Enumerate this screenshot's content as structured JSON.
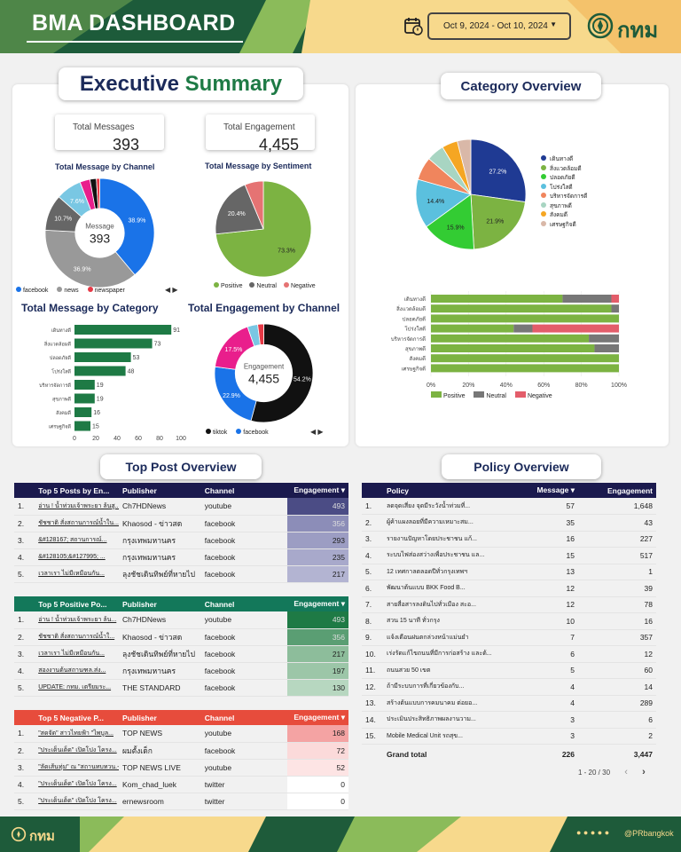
{
  "header": {
    "title": "BMA DASHBOARD",
    "date_range": "Oct 9, 2024 - Oct 10, 2024",
    "logo_text": "กทม"
  },
  "colors": {
    "green": "#1e5b3a",
    "yellow": "#f7d98c",
    "navy": "#1b1a4e",
    "teal": "#13785a",
    "red": "#e74c3c"
  },
  "executive": {
    "title_a": "Executive",
    "title_b": "Summary",
    "total_messages_label": "Total Messages",
    "total_messages": "393",
    "total_engagement_label": "Total Engagement",
    "total_engagement": "4,455"
  },
  "channel_chart": {
    "title": "Total Message by Channel",
    "center_label": "Message",
    "center_value": "393",
    "legend": [
      "facebook",
      "news",
      "newspaper"
    ],
    "chart_data": {
      "type": "pie",
      "slices": [
        {
          "label": "facebook",
          "value": 38.9,
          "color": "#1a73e8"
        },
        {
          "label": "news",
          "value": 36.9,
          "color": "#999999"
        },
        {
          "label": "other-1",
          "value": 10.7,
          "color": "#666666"
        },
        {
          "label": "other-2",
          "value": 7.6,
          "color": "#79c7e3"
        },
        {
          "label": "other-3",
          "value": 3.0,
          "color": "#e91e8c"
        },
        {
          "label": "other-4",
          "value": 1.9,
          "color": "#111111"
        },
        {
          "label": "newspaper",
          "value": 1.0,
          "color": "#e63946"
        }
      ],
      "labels": [
        "38.9%",
        "36.9%",
        "10.7%",
        "7.6%"
      ]
    }
  },
  "sentiment_chart": {
    "title": "Total Message by Sentiment",
    "legend": [
      "Positive",
      "Neutral",
      "Negative"
    ],
    "chart_data": {
      "type": "pie",
      "slices": [
        {
          "label": "Positive",
          "value": 73.3,
          "color": "#7cb342"
        },
        {
          "label": "Neutral",
          "value": 20.4,
          "color": "#666666"
        },
        {
          "label": "Negative",
          "value": 6.3,
          "color": "#e57373"
        }
      ],
      "labels": [
        "73.3%",
        "20.4%"
      ]
    }
  },
  "category_bar": {
    "title": "Total Message by Category",
    "chart_data": {
      "type": "bar",
      "categories": [
        "เดินทางดี",
        "สิ่งแวดล้อมดี",
        "ปลอดภัยดี",
        "โปร่งใสดี",
        "บริหารจัดการดี",
        "สุขภาพดี",
        "สังคมดี",
        "เศรษฐกิจดี"
      ],
      "values": [
        91,
        73,
        53,
        48,
        19,
        19,
        16,
        15
      ],
      "xlim": [
        0,
        100
      ],
      "xticks": [
        "0",
        "20",
        "40",
        "60",
        "80",
        "100"
      ]
    }
  },
  "engagement_channel": {
    "title": "Total Engagement by Channel",
    "center_label": "Engagement",
    "center_value": "4,455",
    "legend": [
      "tiktok",
      "facebook"
    ],
    "chart_data": {
      "type": "pie",
      "slices": [
        {
          "label": "tiktok",
          "value": 54.2,
          "color": "#111111"
        },
        {
          "label": "facebook",
          "value": 22.9,
          "color": "#1a73e8"
        },
        {
          "label": "other-1",
          "value": 17.5,
          "color": "#e91e8c"
        },
        {
          "label": "other-2",
          "value": 3.4,
          "color": "#79c7e3"
        },
        {
          "label": "other-3",
          "value": 2.0,
          "color": "#e63946"
        }
      ],
      "labels": [
        "54.2%",
        "22.9%",
        "17.5%"
      ]
    }
  },
  "category_overview": {
    "title": "Category Overview",
    "pie": {
      "chart_data": {
        "type": "pie",
        "slices": [
          {
            "label": "เดินทางดี",
            "value": 27.2,
            "color": "#1f3a93"
          },
          {
            "label": "สิ่งแวดล้อมดี",
            "value": 21.9,
            "color": "#7cb342"
          },
          {
            "label": "ปลอดภัยดี",
            "value": 15.9,
            "color": "#33cc33"
          },
          {
            "label": "โปร่งใสดี",
            "value": 14.4,
            "color": "#5bc0de"
          },
          {
            "label": "บริหารจัดการดี",
            "value": 6.8,
            "color": "#f0855d"
          },
          {
            "label": "สุขภาพดี",
            "value": 5.2,
            "color": "#a8d5c2"
          },
          {
            "label": "สังคมดี",
            "value": 4.6,
            "color": "#f5a623"
          },
          {
            "label": "เศรษฐกิจดี",
            "value": 4.0,
            "color": "#d9b8a8"
          }
        ],
        "labels": [
          "27.2%",
          "21.9%",
          "15.9%",
          "14.4%"
        ]
      }
    },
    "stacked": {
      "chart_data": {
        "type": "bar",
        "categories": [
          "เดินทางดี",
          "สิ่งแวดล้อมดี",
          "ปลอดภัยดี",
          "โปร่งใสดี",
          "บริหารจัดการดี",
          "สุขภาพดี",
          "สังคมดี",
          "เศรษฐกิจดี"
        ],
        "series": [
          {
            "name": "Positive",
            "color": "#7cb342",
            "values": [
              70,
              96,
              100,
              44,
              84,
              87,
              100,
              100
            ]
          },
          {
            "name": "Neutral",
            "color": "#777777",
            "values": [
              26,
              4,
              0,
              10,
              16,
              13,
              0,
              0
            ]
          },
          {
            "name": "Negative",
            "color": "#e35d6a",
            "values": [
              4,
              0,
              0,
              46,
              0,
              0,
              0,
              0
            ]
          }
        ],
        "xticks": [
          "0%",
          "20%",
          "40%",
          "60%",
          "80%",
          "100%"
        ]
      }
    }
  },
  "top_post": {
    "title": "Top Post Overview",
    "top5": {
      "headers": [
        "Top 5 Posts by En...",
        "Publisher",
        "Channel",
        "Engagement ▾"
      ],
      "rows": [
        [
          "1.",
          "อ่าน ! น้ำท่วมเจ้าพระยา ล้นสู...",
          "Ch7HDNews",
          "youtube",
          "493"
        ],
        [
          "2.",
          "ชัชชาติ สั่งสถานการณ์น้ำใน...",
          "Khaosod - ข่าวสด",
          "facebook",
          "356"
        ],
        [
          "3.",
          "&#128167; สถานการณ์...",
          "กรุงเทพมหานคร",
          "facebook",
          "293"
        ],
        [
          "4.",
          "&#128105;&#127995; ...",
          "กรุงเทพมหานคร",
          "facebook",
          "235"
        ],
        [
          "5.",
          "เวลาเรา ไม่มีเหมือนกัน...",
          "ลุงชัชเดินทิพย์ที่หายไป",
          "facebook",
          "217"
        ]
      ]
    },
    "positive": {
      "headers": [
        "Top 5 Positive Po...",
        "Publisher",
        "Channel",
        "Engagement ▾"
      ],
      "rows": [
        [
          "1.",
          "อ่าน ! น้ำท่วมเจ้าพระยา ล้น...",
          "Ch7HDNews",
          "youtube",
          "493"
        ],
        [
          "2.",
          "ชัชชาติ สั่งสถานการณ์น้ำใ...",
          "Khaosod - ข่าวสด",
          "facebook",
          "356"
        ],
        [
          "3.",
          "เวลาเรา ไม่มีเหมือนกัน...",
          "ลุงชัชเดินทิพย์ที่หายไป",
          "facebook",
          "217"
        ],
        [
          "4.",
          "สองงานต้นสถานฑล.ส่ง...",
          "กรุงเทพมหานคร",
          "facebook",
          "197"
        ],
        [
          "5.",
          "UPDATE: กทม. เตรียมระ...",
          "THE STANDARD",
          "facebook",
          "130"
        ]
      ]
    },
    "negative": {
      "headers": [
        "Top 5 Negative P...",
        "Publisher",
        "Channel",
        "Engagement ▾"
      ],
      "rows": [
        [
          "1.",
          "\"สดจัด\" สาวไทยฟ้า \"ไพบูล...",
          "TOP NEWS",
          "youtube",
          "168"
        ],
        [
          "2.",
          "\"ประเด็นเด็ด\" เปิดโปง โครง...",
          "ผมตั้งเด็ก",
          "facebook",
          "72"
        ],
        [
          "3.",
          "\"ลัดเส้นทุ่ม\" ณ \"สถานทบทวน.-สุ...",
          "TOP NEWS LIVE",
          "youtube",
          "52"
        ],
        [
          "4.",
          "\"ประเด็นเด็ด\" เปิดโปง โครง...",
          "Kom_chad_luek",
          "twitter",
          "0"
        ],
        [
          "5.",
          "\"ประเด็นเด็ด\" เปิดโปง โครง...",
          "ernewsroom",
          "twitter",
          "0"
        ]
      ]
    }
  },
  "policy": {
    "title": "Policy Overview",
    "headers": [
      "Policy",
      "Message ▾",
      "Engagement"
    ],
    "rows": [
      [
        "1.",
        "ลดจุดเสี่ยง จุดมีระวังน้ำท่วมที่...",
        "57",
        "1,648"
      ],
      [
        "2.",
        "ผู้ค้าแผงลอยที่มีความเหมาะสม...",
        "35",
        "43"
      ],
      [
        "3.",
        "รายงานปัญหาโดยประชาชน แก้...",
        "16",
        "227"
      ],
      [
        "4.",
        "ระบบไฟส่องสว่างเพื่อประชาชน แล...",
        "15",
        "517"
      ],
      [
        "5.",
        "12 เทศกาลตลอดปีทั่วกรุงเทพฯ",
        "13",
        "1"
      ],
      [
        "6.",
        "พัฒนาต้นแบบ BKK Food B...",
        "12",
        "39"
      ],
      [
        "7.",
        "สายสื่อสารลงดินไปทั่วเมือง สะอ...",
        "12",
        "78"
      ],
      [
        "8.",
        "สวน 15 นาที ทั่วกรุง",
        "10",
        "16"
      ],
      [
        "9.",
        "แจ้งเตือนฝนตกล่วงหน้าแม่นยำ",
        "7",
        "357"
      ],
      [
        "10.",
        "เร่งรัดแก้ไขถนนที่มีการก่อสร้าง และต้...",
        "6",
        "12"
      ],
      [
        "11.",
        "ถนนสวย 50 เขต",
        "5",
        "60"
      ],
      [
        "12.",
        "ถ้ามีระบบการที่เกี่ยวข้องกับ...",
        "4",
        "14"
      ],
      [
        "13.",
        "สร้างต้นแบบการคมนาคม ต่อยอ...",
        "4",
        "289"
      ],
      [
        "14.",
        "ประเมินประสิทธิภาพผลงานวาม...",
        "3",
        "6"
      ],
      [
        "15.",
        "Mobile Medical Unit รถสุข...",
        "3",
        "2"
      ]
    ],
    "total_label": "Grand total",
    "total_message": "226",
    "total_engagement": "3,447",
    "pagination": "1 - 20 / 30"
  },
  "footer": {
    "logo_text": "กทม",
    "social": "@PRbangkok"
  }
}
